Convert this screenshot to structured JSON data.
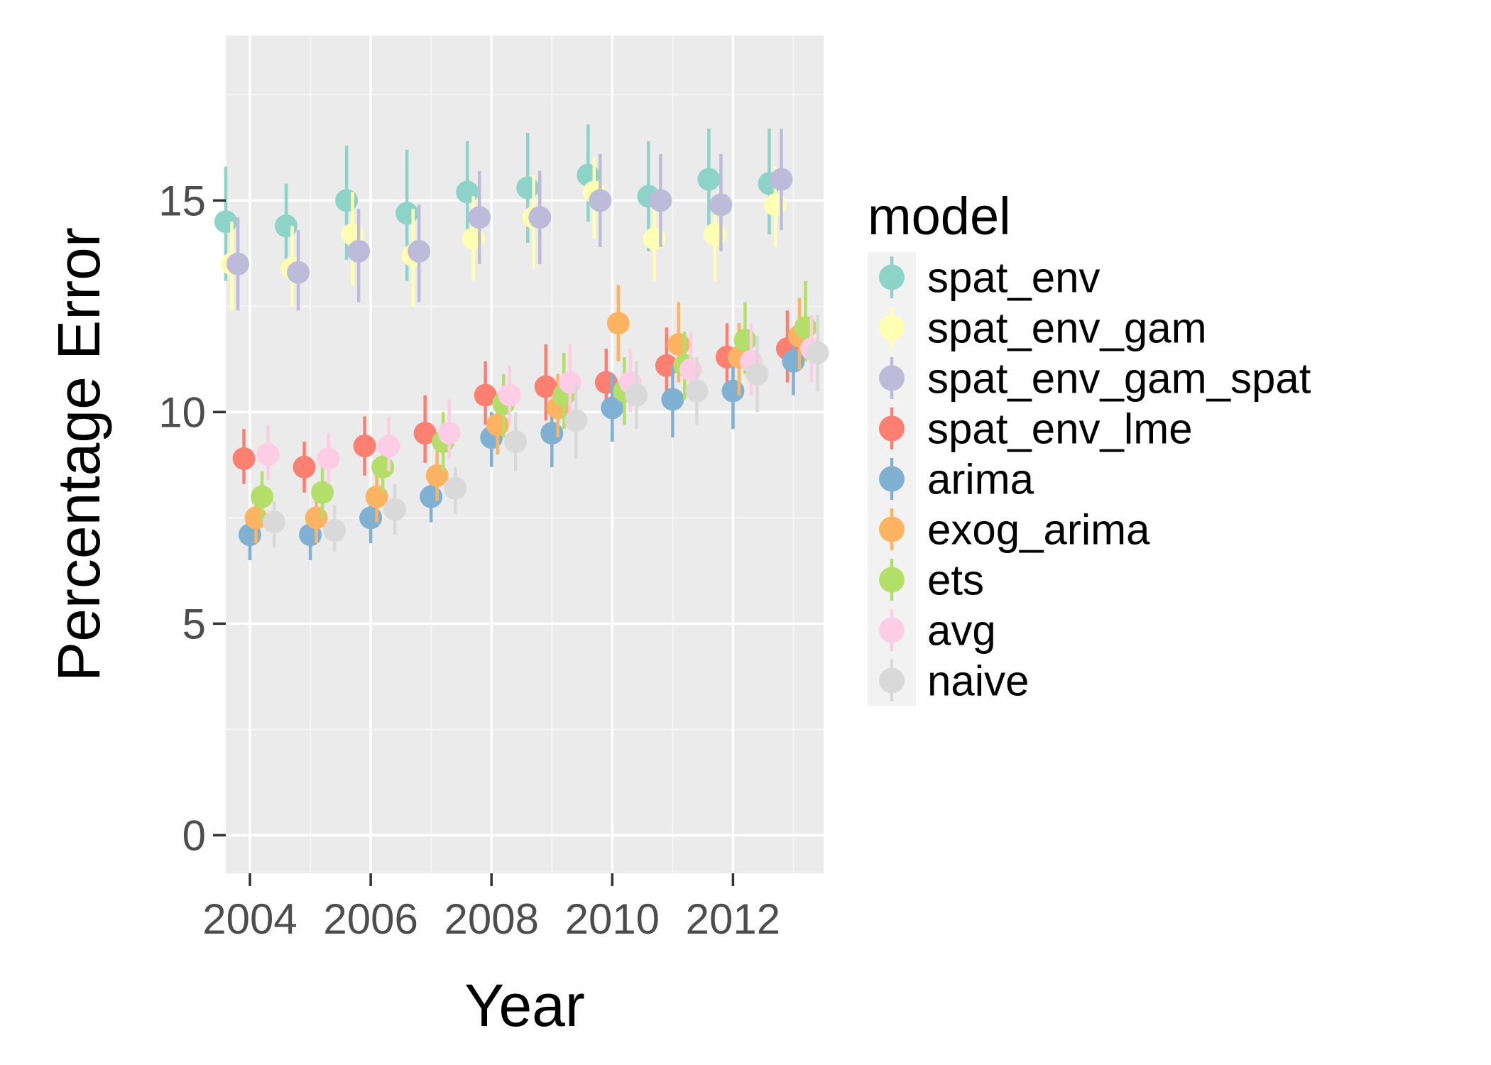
{
  "chart_data": {
    "type": "scatter",
    "xlabel": "Year",
    "ylabel": "Percentage Error",
    "x_tick_labels": [
      "2004",
      "2006",
      "2008",
      "2010",
      "2012"
    ],
    "x_ticks": [
      2004,
      2006,
      2008,
      2010,
      2012
    ],
    "y_tick_labels": [
      "0",
      "5",
      "10",
      "15"
    ],
    "y_ticks": [
      0,
      5,
      10,
      15
    ],
    "xlim": [
      2003.6,
      2013.5
    ],
    "ylim": [
      -0.9,
      18.9
    ],
    "grid": true,
    "legend": {
      "title": "model",
      "placement": "right"
    },
    "years": [
      2004,
      2005,
      2006,
      2007,
      2008,
      2009,
      2010,
      2011,
      2012,
      2013
    ],
    "series": [
      {
        "name": "spat_env",
        "color": "#8DD3C7",
        "values": [
          14.5,
          14.4,
          15.0,
          14.7,
          15.2,
          15.3,
          15.6,
          15.1,
          15.5,
          15.4
        ],
        "lower": [
          13.1,
          13.3,
          13.6,
          13.1,
          14.0,
          14.0,
          14.5,
          13.8,
          14.2,
          14.2
        ],
        "upper": [
          15.8,
          15.4,
          16.3,
          16.2,
          16.4,
          16.6,
          16.8,
          16.4,
          16.7,
          16.7
        ]
      },
      {
        "name": "spat_env_gam",
        "color": "#FFFFB3",
        "values": [
          13.5,
          13.4,
          14.2,
          13.7,
          14.1,
          14.6,
          15.2,
          14.1,
          14.2,
          14.9
        ],
        "lower": [
          12.4,
          12.5,
          13.0,
          12.5,
          13.1,
          13.4,
          14.1,
          13.1,
          13.1,
          13.9
        ],
        "upper": [
          14.5,
          14.4,
          15.2,
          14.8,
          15.1,
          15.6,
          16.0,
          15.1,
          15.1,
          15.8
        ]
      },
      {
        "name": "spat_env_gam_spat",
        "color": "#BEBADA",
        "values": [
          13.5,
          13.3,
          13.8,
          13.8,
          14.6,
          14.6,
          15.0,
          15.0,
          14.9,
          15.5
        ],
        "lower": [
          12.4,
          12.4,
          12.6,
          12.6,
          13.5,
          13.5,
          13.9,
          13.9,
          13.8,
          14.3
        ],
        "upper": [
          14.6,
          14.3,
          14.8,
          14.9,
          15.7,
          15.7,
          16.1,
          16.1,
          16.1,
          16.7
        ]
      },
      {
        "name": "spat_env_lme",
        "color": "#FB8072",
        "values": [
          8.9,
          8.7,
          9.2,
          9.5,
          10.4,
          10.6,
          10.7,
          11.1,
          11.3,
          11.5
        ],
        "lower": [
          8.3,
          8.1,
          8.5,
          8.8,
          9.7,
          9.8,
          9.9,
          10.3,
          10.5,
          10.7
        ],
        "upper": [
          9.6,
          9.3,
          9.9,
          10.4,
          11.2,
          11.6,
          11.5,
          12.0,
          12.1,
          12.4
        ]
      },
      {
        "name": "arima",
        "color": "#80B1D3",
        "values": [
          7.1,
          7.1,
          7.5,
          8.0,
          9.4,
          9.5,
          10.1,
          10.3,
          10.5,
          11.2
        ],
        "lower": [
          6.5,
          6.5,
          6.9,
          7.4,
          8.7,
          8.7,
          9.3,
          9.4,
          9.6,
          10.4
        ],
        "upper": [
          7.6,
          7.6,
          8.1,
          8.6,
          10.0,
          10.3,
          10.9,
          11.1,
          11.3,
          11.9
        ]
      },
      {
        "name": "exog_arima",
        "color": "#FDB462",
        "values": [
          7.5,
          7.5,
          8.0,
          8.5,
          9.7,
          10.1,
          12.1,
          11.6,
          11.3,
          11.8
        ],
        "lower": [
          6.9,
          6.9,
          7.4,
          7.9,
          9.0,
          9.4,
          11.2,
          10.7,
          10.4,
          11.0
        ],
        "upper": [
          8.1,
          8.1,
          8.6,
          9.2,
          10.4,
          10.9,
          13.0,
          12.6,
          12.1,
          12.7
        ]
      },
      {
        "name": "ets",
        "color": "#B3DE69",
        "values": [
          8.0,
          8.1,
          8.7,
          9.3,
          10.2,
          10.4,
          10.5,
          11.1,
          11.7,
          12.0
        ],
        "lower": [
          7.4,
          7.5,
          8.1,
          8.6,
          9.4,
          9.6,
          9.7,
          10.3,
          10.9,
          11.2
        ],
        "upper": [
          8.6,
          8.7,
          9.3,
          10.0,
          10.9,
          11.4,
          11.3,
          11.9,
          12.6,
          13.1
        ]
      },
      {
        "name": "avg",
        "color": "#FCCDE5",
        "values": [
          9.0,
          8.9,
          9.2,
          9.5,
          10.4,
          10.7,
          10.7,
          11.0,
          11.2,
          11.5
        ],
        "lower": [
          8.4,
          8.3,
          8.6,
          8.9,
          9.7,
          9.9,
          10.0,
          10.3,
          10.4,
          10.7
        ],
        "upper": [
          9.7,
          9.5,
          9.9,
          10.3,
          11.1,
          11.6,
          11.5,
          11.9,
          12.1,
          12.3
        ]
      },
      {
        "name": "naive",
        "color": "#D9D9D9",
        "values": [
          7.4,
          7.2,
          7.7,
          8.2,
          9.3,
          9.8,
          10.4,
          10.5,
          10.9,
          11.4
        ],
        "lower": [
          6.8,
          6.7,
          7.1,
          7.6,
          8.6,
          8.9,
          9.6,
          9.7,
          10.0,
          10.5
        ],
        "upper": [
          7.9,
          7.8,
          8.3,
          8.7,
          10.0,
          10.7,
          11.2,
          11.3,
          11.8,
          12.3
        ]
      }
    ]
  }
}
